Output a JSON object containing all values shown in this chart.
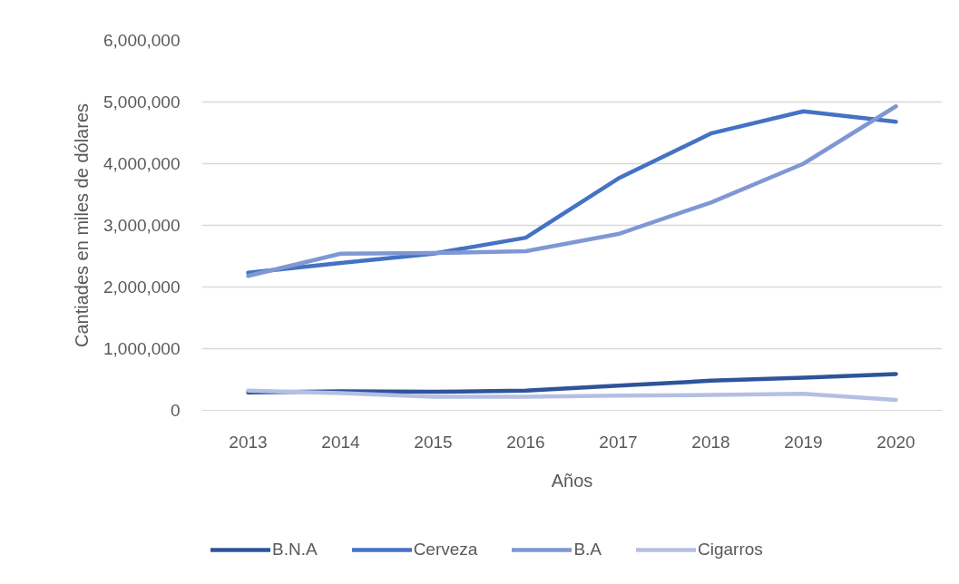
{
  "chart_data": {
    "type": "line",
    "xlabel": "Años",
    "ylabel": "Cantiades en miles de dólares",
    "categories": [
      "2013",
      "2014",
      "2015",
      "2016",
      "2017",
      "2018",
      "2019",
      "2020"
    ],
    "series": [
      {
        "name": "B.N.A",
        "color": "#2e549a",
        "values": [
          290000,
          310000,
          300000,
          320000,
          400000,
          480000,
          530000,
          590000
        ]
      },
      {
        "name": "Cerveza",
        "color": "#4472c4",
        "values": [
          2230000,
          2390000,
          2540000,
          2800000,
          3760000,
          4490000,
          4850000,
          4680000
        ]
      },
      {
        "name": "B.A",
        "color": "#7f97d3",
        "values": [
          2180000,
          2540000,
          2550000,
          2580000,
          2860000,
          3370000,
          4000000,
          4930000
        ]
      },
      {
        "name": "Cigarros",
        "color": "#b4c0e3",
        "values": [
          320000,
          280000,
          220000,
          220000,
          240000,
          250000,
          270000,
          170000
        ]
      }
    ],
    "ylim": [
      0,
      6000000
    ],
    "yticks": [
      0,
      {
        "value": 1000000,
        "label": "1,000,000"
      },
      {
        "value": 2000000,
        "label": "2,000,000"
      },
      {
        "value": 3000000,
        "label": "3,000,000"
      },
      {
        "value": 4000000,
        "label": "4,000,000"
      },
      {
        "value": 5000000,
        "label": "5,000,000"
      },
      {
        "value": 6000000,
        "label": "6,000,000"
      }
    ],
    "grid": "y",
    "legend": "bottom",
    "marker": "none",
    "line_style": "solid"
  }
}
